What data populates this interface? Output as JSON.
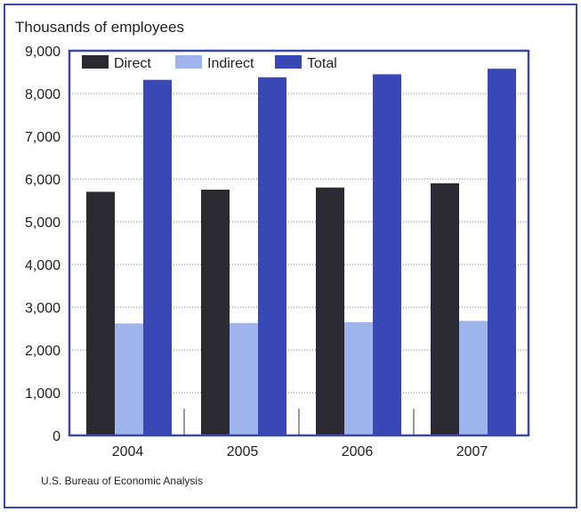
{
  "chart_data": {
    "type": "bar",
    "ylabel": "Thousands of employees",
    "categories": [
      "2004",
      "2005",
      "2006",
      "2007"
    ],
    "series": [
      {
        "name": "Direct",
        "values": [
          5700,
          5750,
          5800,
          5900
        ],
        "color": "#2b2a30"
      },
      {
        "name": "Indirect",
        "values": [
          2620,
          2630,
          2650,
          2680
        ],
        "color": "#9fb4ea"
      },
      {
        "name": "Total",
        "values": [
          8320,
          8380,
          8450,
          8580
        ],
        "color": "#3a48b6"
      }
    ],
    "ylim": [
      0,
      9000
    ],
    "yticks": [
      "0",
      "1,000",
      "2,000",
      "3,000",
      "4,000",
      "5,000",
      "6,000",
      "7,000",
      "8,000",
      "9,000"
    ],
    "grid": true,
    "legend": "top-left"
  },
  "source": "U.S. Bureau of Economic Analysis",
  "colors": {
    "frame": "#3b48a8",
    "plot_border": "#3b48a8",
    "grid": "#777777"
  }
}
